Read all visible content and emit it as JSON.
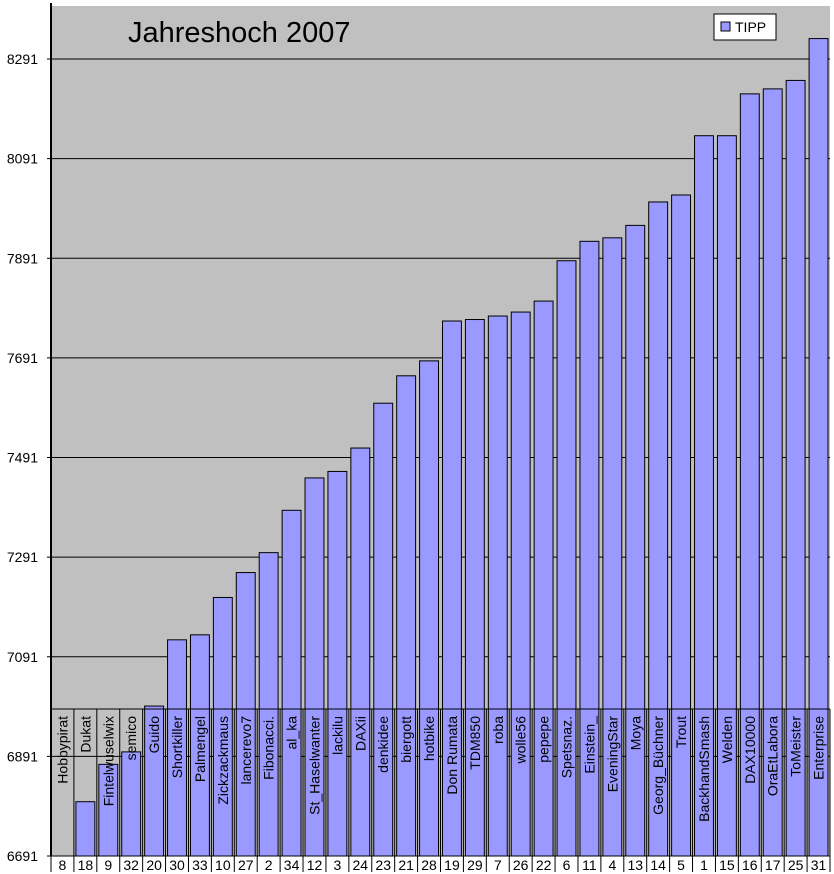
{
  "chart_data": {
    "type": "bar",
    "title": "Jahreshoch 2007",
    "legend": [
      "TIPP"
    ],
    "legend_position": "top-right",
    "colors": {
      "bar": "#9999ff",
      "plot_bg": "#c0c0c0",
      "bar_stroke": "#000000"
    },
    "ylim": [
      6691,
      8291
    ],
    "yticks": [
      "6691",
      "6891",
      "7091",
      "7291",
      "7491",
      "7691",
      "7891",
      "8091",
      "8291"
    ],
    "grid": true,
    "categories": [
      "Hobbypirat",
      "Dukat",
      "Fintelwuselwix",
      "semico",
      "Guido",
      "Shortkiller",
      "Palmengel",
      "Zickzackmaus",
      "lancerevo7",
      "Fibonacci.",
      "al_ka",
      "St_Haselwanter",
      "lackilu",
      "DAXii",
      "denkidee",
      "biergott",
      "hotbike",
      "Don Rumata",
      "TDM850",
      "roba",
      "wolle56",
      "pepepe",
      "Spetsnaz.",
      "Einstein_",
      "EveningStar",
      "Moya",
      "Georg_Büchner",
      "Trout",
      "BackhandSmash",
      "Welden",
      "DAX10000",
      "OraEtLabora",
      "ToMeister",
      "Enterprise"
    ],
    "ids": [
      "8",
      "18",
      "9",
      "32",
      "20",
      "30",
      "33",
      "10",
      "27",
      "2",
      "34",
      "12",
      "3",
      "24",
      "23",
      "21",
      "28",
      "19",
      "29",
      "7",
      "26",
      "22",
      "6",
      "11",
      "4",
      "13",
      "14",
      "5",
      "1",
      "15",
      "16",
      "17",
      "25",
      "31"
    ],
    "series": [
      {
        "name": "TIPP",
        "values": [
          6691,
          6800,
          6875,
          6900,
          6992,
          7125,
          7135,
          7210,
          7260,
          7300,
          7385,
          7450,
          7463,
          7510,
          7600,
          7655,
          7685,
          7765,
          7768,
          7775,
          7783,
          7805,
          7886,
          7925,
          7932,
          7957,
          8004,
          8018,
          8137,
          8137,
          8221,
          8231,
          8248,
          8332
        ]
      }
    ]
  }
}
